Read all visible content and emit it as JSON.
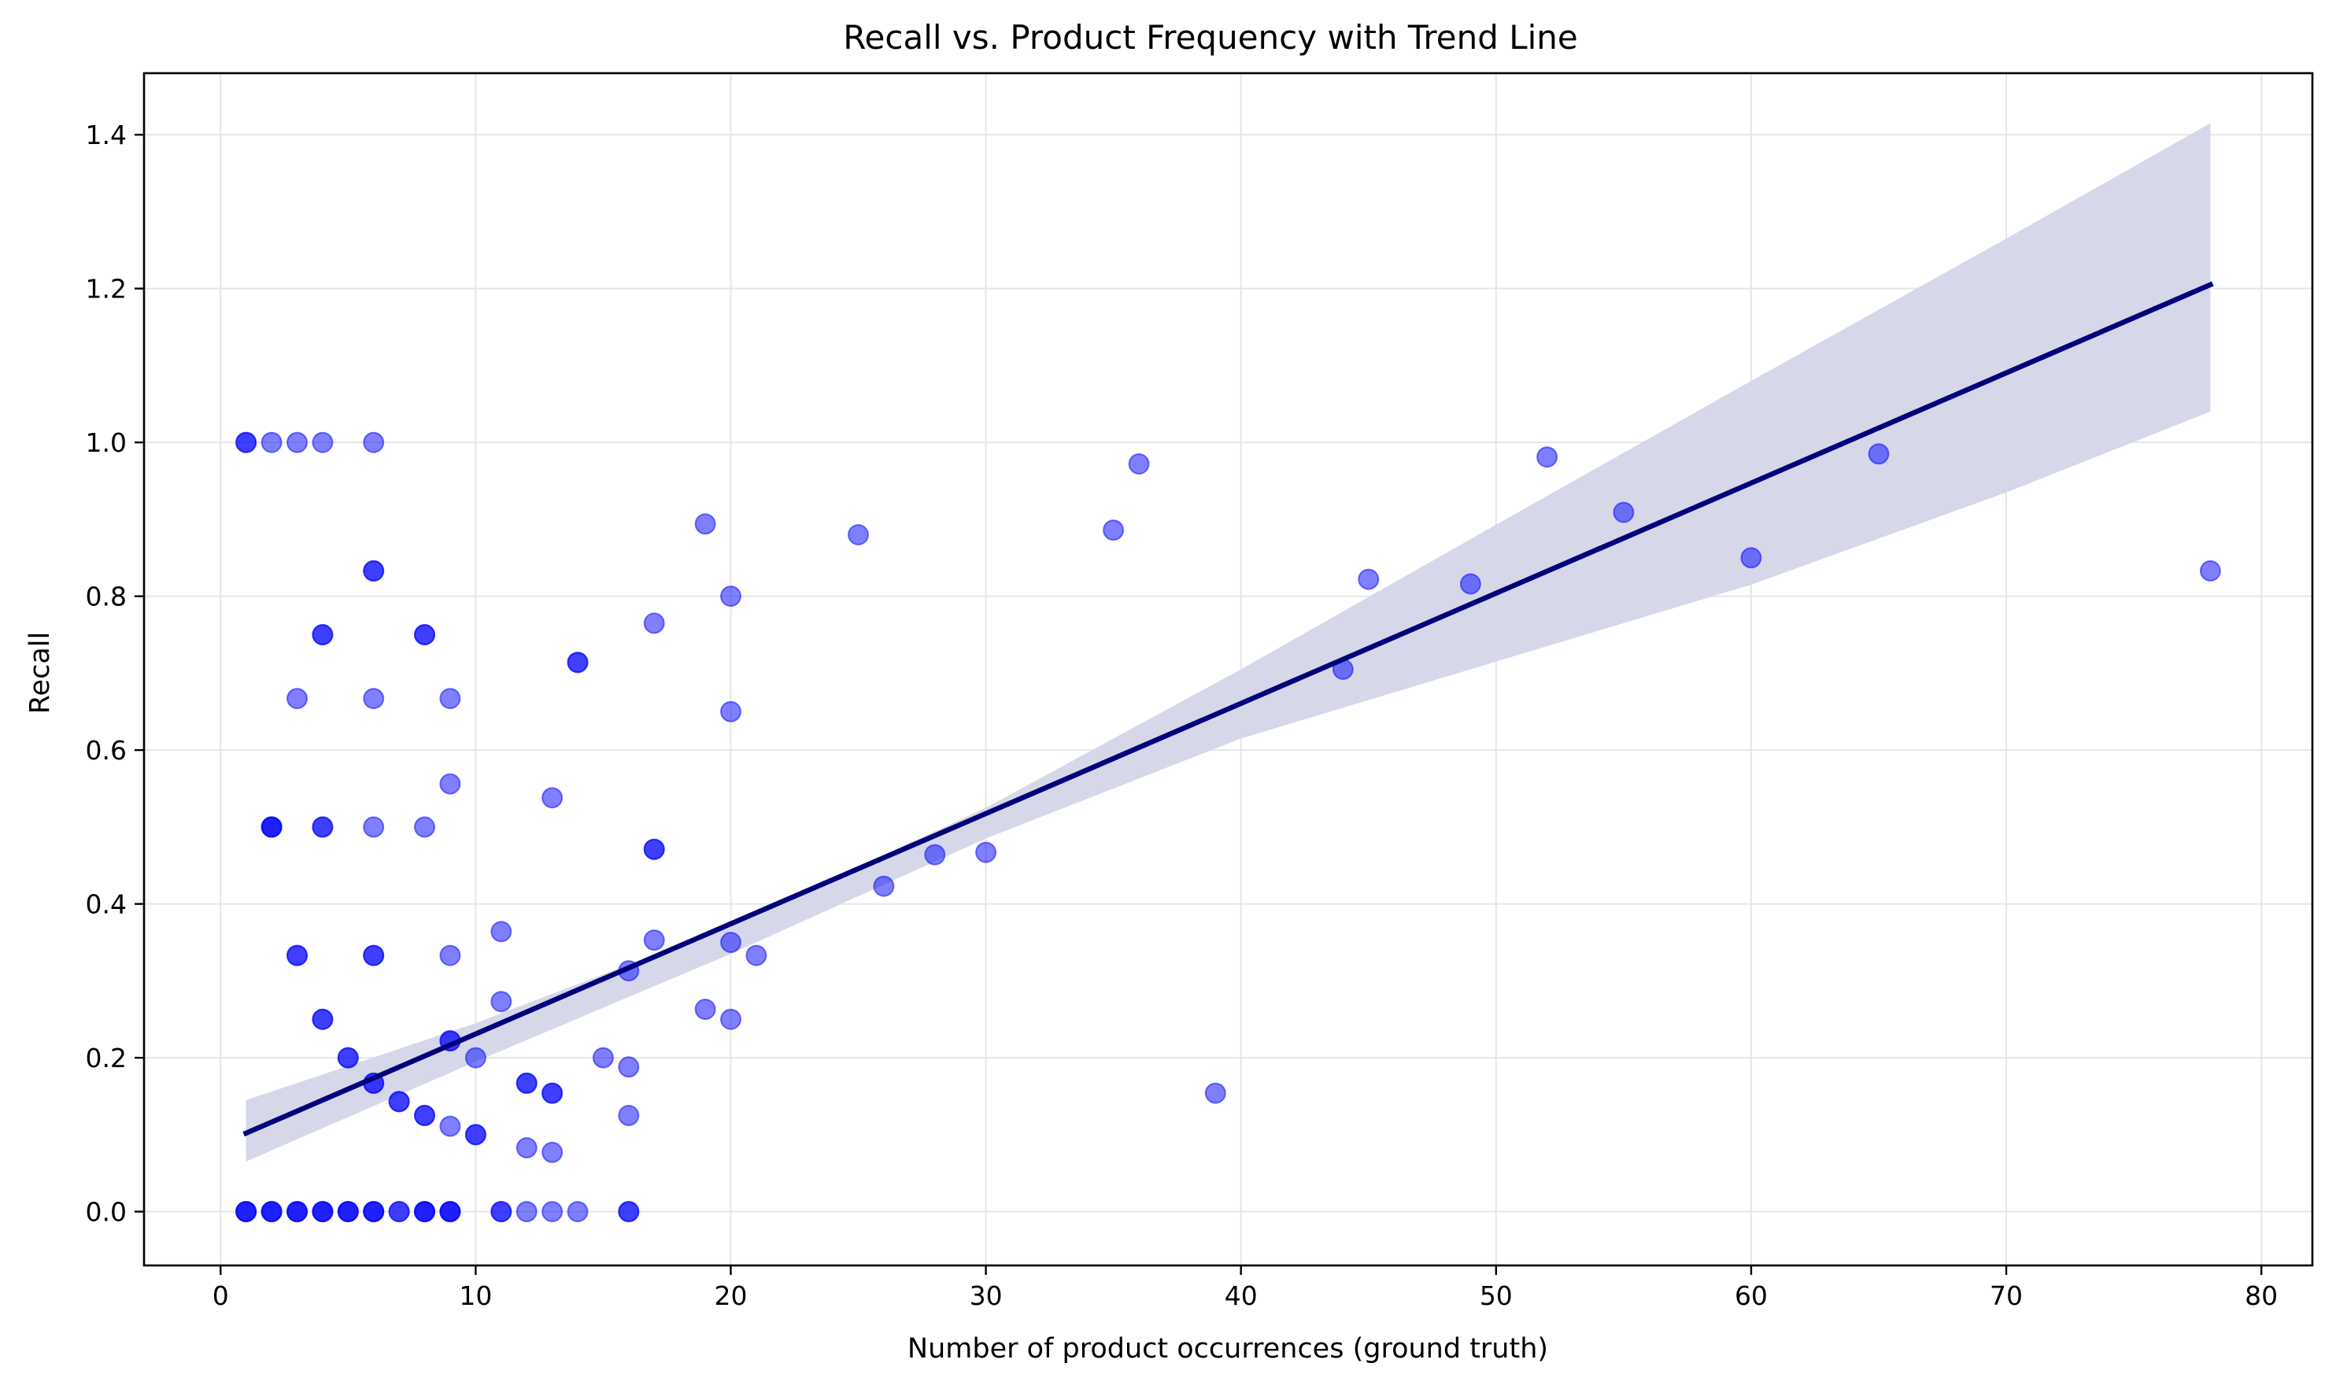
{
  "chart_data": {
    "type": "scatter",
    "title": "Recall vs. Product Frequency with Trend Line",
    "xlabel": "Number of product occurrences (ground truth)",
    "ylabel": "Recall",
    "xlim": [
      -3,
      82
    ],
    "ylim": [
      -0.07,
      1.48
    ],
    "xticks": [
      0,
      10,
      20,
      30,
      40,
      50,
      60,
      70,
      80
    ],
    "yticks": [
      0.0,
      0.2,
      0.4,
      0.6,
      0.8,
      1.0,
      1.2,
      1.4
    ],
    "xtick_labels": [
      "0",
      "10",
      "20",
      "30",
      "40",
      "50",
      "60",
      "70",
      "80"
    ],
    "ytick_labels": [
      "0.0",
      "0.2",
      "0.4",
      "0.6",
      "0.8",
      "1.0",
      "1.2",
      "1.4"
    ],
    "grid": true,
    "colors": {
      "points": "#0000ff",
      "trend": "#00007a",
      "band": "#d6d8ea",
      "grid": "#e6e6e6",
      "frame": "#000000"
    },
    "points": [
      {
        "x": 1,
        "y": 1.0
      },
      {
        "x": 1,
        "y": 1.0
      },
      {
        "x": 2,
        "y": 1.0
      },
      {
        "x": 3,
        "y": 1.0
      },
      {
        "x": 4,
        "y": 1.0
      },
      {
        "x": 6,
        "y": 1.0
      },
      {
        "x": 6,
        "y": 0.833
      },
      {
        "x": 6,
        "y": 0.833
      },
      {
        "x": 4,
        "y": 0.75
      },
      {
        "x": 4,
        "y": 0.75
      },
      {
        "x": 8,
        "y": 0.75
      },
      {
        "x": 8,
        "y": 0.75
      },
      {
        "x": 14,
        "y": 0.714
      },
      {
        "x": 14,
        "y": 0.714
      },
      {
        "x": 3,
        "y": 0.667
      },
      {
        "x": 6,
        "y": 0.667
      },
      {
        "x": 9,
        "y": 0.667
      },
      {
        "x": 9,
        "y": 0.556
      },
      {
        "x": 13,
        "y": 0.538
      },
      {
        "x": 2,
        "y": 0.5
      },
      {
        "x": 2,
        "y": 0.5
      },
      {
        "x": 2,
        "y": 0.5
      },
      {
        "x": 4,
        "y": 0.5
      },
      {
        "x": 4,
        "y": 0.5
      },
      {
        "x": 6,
        "y": 0.5
      },
      {
        "x": 8,
        "y": 0.5
      },
      {
        "x": 17,
        "y": 0.471
      },
      {
        "x": 17,
        "y": 0.471
      },
      {
        "x": 3,
        "y": 0.333
      },
      {
        "x": 3,
        "y": 0.333
      },
      {
        "x": 6,
        "y": 0.333
      },
      {
        "x": 6,
        "y": 0.333
      },
      {
        "x": 9,
        "y": 0.333
      },
      {
        "x": 11,
        "y": 0.364
      },
      {
        "x": 17,
        "y": 0.353
      },
      {
        "x": 16,
        "y": 0.313
      },
      {
        "x": 20,
        "y": 0.35
      },
      {
        "x": 21,
        "y": 0.333
      },
      {
        "x": 11,
        "y": 0.273
      },
      {
        "x": 19,
        "y": 0.263
      },
      {
        "x": 20,
        "y": 0.25
      },
      {
        "x": 4,
        "y": 0.25
      },
      {
        "x": 4,
        "y": 0.25
      },
      {
        "x": 9,
        "y": 0.222
      },
      {
        "x": 9,
        "y": 0.222
      },
      {
        "x": 5,
        "y": 0.2
      },
      {
        "x": 5,
        "y": 0.2
      },
      {
        "x": 10,
        "y": 0.2
      },
      {
        "x": 15,
        "y": 0.2
      },
      {
        "x": 16,
        "y": 0.188
      },
      {
        "x": 6,
        "y": 0.167
      },
      {
        "x": 6,
        "y": 0.167
      },
      {
        "x": 12,
        "y": 0.167
      },
      {
        "x": 12,
        "y": 0.167
      },
      {
        "x": 13,
        "y": 0.154
      },
      {
        "x": 13,
        "y": 0.154
      },
      {
        "x": 7,
        "y": 0.143
      },
      {
        "x": 7,
        "y": 0.143
      },
      {
        "x": 8,
        "y": 0.125
      },
      {
        "x": 8,
        "y": 0.125
      },
      {
        "x": 16,
        "y": 0.125
      },
      {
        "x": 9,
        "y": 0.111
      },
      {
        "x": 10,
        "y": 0.1
      },
      {
        "x": 10,
        "y": 0.1
      },
      {
        "x": 12,
        "y": 0.083
      },
      {
        "x": 13,
        "y": 0.077
      },
      {
        "x": 1,
        "y": 0.0
      },
      {
        "x": 1,
        "y": 0.0
      },
      {
        "x": 1,
        "y": 0.0
      },
      {
        "x": 2,
        "y": 0.0
      },
      {
        "x": 2,
        "y": 0.0
      },
      {
        "x": 2,
        "y": 0.0
      },
      {
        "x": 3,
        "y": 0.0
      },
      {
        "x": 3,
        "y": 0.0
      },
      {
        "x": 3,
        "y": 0.0
      },
      {
        "x": 4,
        "y": 0.0
      },
      {
        "x": 4,
        "y": 0.0
      },
      {
        "x": 4,
        "y": 0.0
      },
      {
        "x": 5,
        "y": 0.0
      },
      {
        "x": 5,
        "y": 0.0
      },
      {
        "x": 5,
        "y": 0.0
      },
      {
        "x": 6,
        "y": 0.0
      },
      {
        "x": 6,
        "y": 0.0
      },
      {
        "x": 6,
        "y": 0.0
      },
      {
        "x": 7,
        "y": 0.0
      },
      {
        "x": 7,
        "y": 0.0
      },
      {
        "x": 8,
        "y": 0.0
      },
      {
        "x": 8,
        "y": 0.0
      },
      {
        "x": 8,
        "y": 0.0
      },
      {
        "x": 9,
        "y": 0.0
      },
      {
        "x": 9,
        "y": 0.0
      },
      {
        "x": 9,
        "y": 0.0
      },
      {
        "x": 11,
        "y": 0.0
      },
      {
        "x": 11,
        "y": 0.0
      },
      {
        "x": 12,
        "y": 0.0
      },
      {
        "x": 13,
        "y": 0.0
      },
      {
        "x": 14,
        "y": 0.0
      },
      {
        "x": 16,
        "y": 0.0
      },
      {
        "x": 16,
        "y": 0.0
      },
      {
        "x": 19,
        "y": 0.894
      },
      {
        "x": 20,
        "y": 0.8
      },
      {
        "x": 17,
        "y": 0.765
      },
      {
        "x": 20,
        "y": 0.65
      },
      {
        "x": 25,
        "y": 0.88
      },
      {
        "x": 26,
        "y": 0.423
      },
      {
        "x": 28,
        "y": 0.464
      },
      {
        "x": 30,
        "y": 0.467
      },
      {
        "x": 35,
        "y": 0.886
      },
      {
        "x": 36,
        "y": 0.972
      },
      {
        "x": 39,
        "y": 0.154
      },
      {
        "x": 44,
        "y": 0.705
      },
      {
        "x": 45,
        "y": 0.822
      },
      {
        "x": 49,
        "y": 0.816
      },
      {
        "x": 52,
        "y": 0.981
      },
      {
        "x": 55,
        "y": 0.909
      },
      {
        "x": 60,
        "y": 0.85
      },
      {
        "x": 65,
        "y": 0.985
      },
      {
        "x": 78,
        "y": 0.833
      }
    ],
    "trend_line": {
      "x": [
        1,
        78
      ],
      "y": [
        0.102,
        1.205
      ]
    },
    "confidence_band": {
      "x": [
        1,
        10,
        20,
        30,
        40,
        50,
        60,
        70,
        78
      ],
      "upper": [
        0.145,
        0.245,
        0.372,
        0.525,
        0.705,
        0.893,
        1.08,
        1.265,
        1.415
      ],
      "lower": [
        0.065,
        0.195,
        0.335,
        0.485,
        0.615,
        0.715,
        0.815,
        0.935,
        1.04
      ]
    }
  }
}
